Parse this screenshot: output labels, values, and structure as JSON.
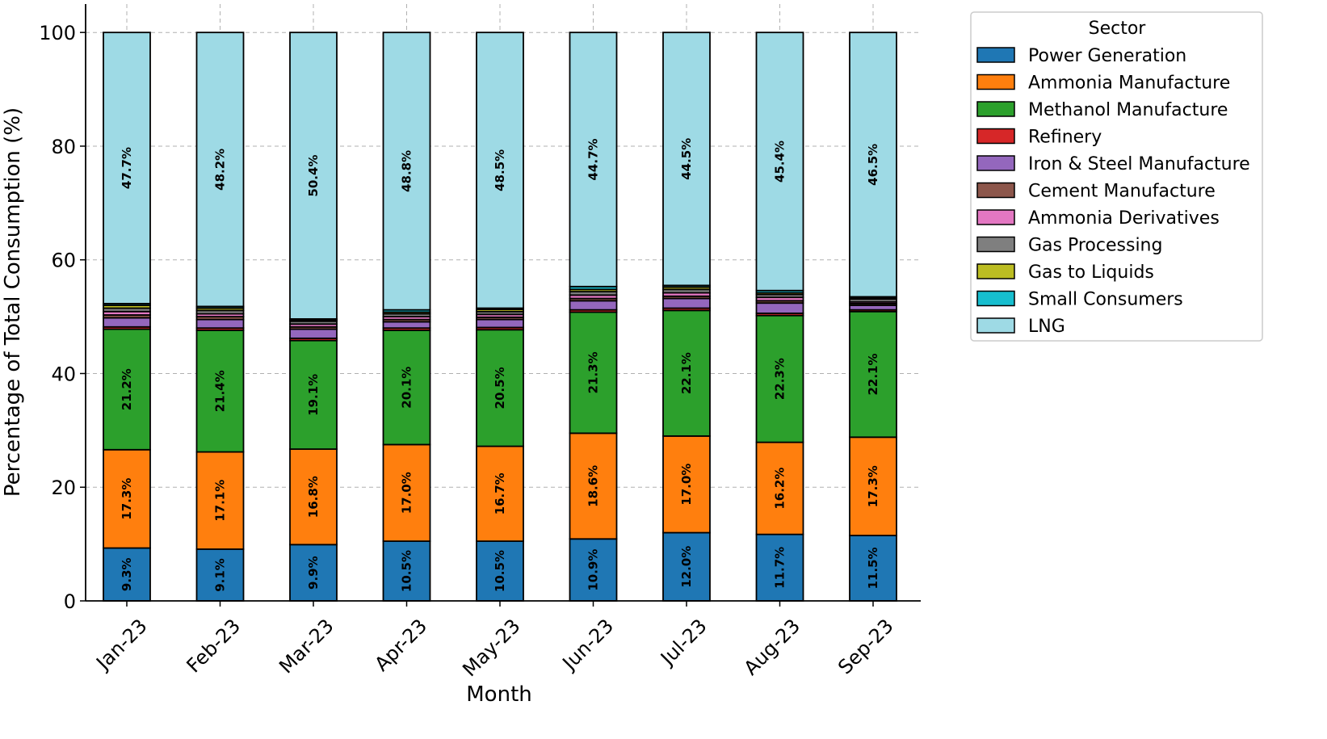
{
  "chart_data": {
    "type": "stacked_bar",
    "x_label": "Month",
    "y_label": "Percentage of Total Consumption (%)",
    "categories": [
      "Jan-23",
      "Feb-23",
      "Mar-23",
      "Apr-23",
      "May-23",
      "Jun-23",
      "Jul-23",
      "Aug-23",
      "Sep-23"
    ],
    "series": [
      {
        "name": "Power Generation",
        "color": "#1f77b4",
        "values": [
          9.3,
          9.1,
          9.9,
          10.5,
          10.5,
          10.9,
          12.0,
          11.7,
          11.5
        ],
        "value_labels": [
          "9.3%",
          "9.1%",
          "9.9%",
          "10.5%",
          "10.5%",
          "10.9%",
          "12.0%",
          "11.7%",
          "11.5%"
        ]
      },
      {
        "name": "Ammonia Manufacture",
        "color": "#ff7f0e",
        "values": [
          17.3,
          17.1,
          16.8,
          17.0,
          16.7,
          18.6,
          17.0,
          16.2,
          17.3
        ],
        "value_labels": [
          "17.3%",
          "17.1%",
          "16.8%",
          "17.0%",
          "16.7%",
          "18.6%",
          "17.0%",
          "16.2%",
          "17.3%"
        ]
      },
      {
        "name": "Methanol Manufacture",
        "color": "#2ca02c",
        "values": [
          21.2,
          21.4,
          19.1,
          20.1,
          20.5,
          21.3,
          22.1,
          22.3,
          22.1
        ],
        "value_labels": [
          "21.2%",
          "21.4%",
          "19.1%",
          "20.1%",
          "20.5%",
          "21.3%",
          "22.1%",
          "22.3%",
          "22.1%"
        ]
      },
      {
        "name": "Refinery",
        "color": "#d62728",
        "values": [
          0.4,
          0.4,
          0.4,
          0.4,
          0.4,
          0.4,
          0.4,
          0.4,
          0.3
        ]
      },
      {
        "name": "Iron & Steel Manufacture",
        "color": "#9467bd",
        "values": [
          1.6,
          1.5,
          1.6,
          1.1,
          1.4,
          1.6,
          1.7,
          1.8,
          0.8
        ]
      },
      {
        "name": "Cement Manufacture",
        "color": "#8c564b",
        "values": [
          0.5,
          0.5,
          0.4,
          0.4,
          0.4,
          0.4,
          0.4,
          0.4,
          0.3
        ]
      },
      {
        "name": "Ammonia Derivatives",
        "color": "#e377c2",
        "values": [
          0.6,
          0.5,
          0.5,
          0.5,
          0.5,
          0.6,
          0.6,
          0.6,
          0.3
        ]
      },
      {
        "name": "Gas Processing",
        "color": "#7f7f7f",
        "values": [
          0.6,
          0.6,
          0.5,
          0.5,
          0.5,
          0.6,
          0.6,
          0.5,
          0.5
        ]
      },
      {
        "name": "Gas to Liquids",
        "color": "#bcbd22",
        "values": [
          0.5,
          0.4,
          0.2,
          0.3,
          0.4,
          0.4,
          0.4,
          0.3,
          0.2
        ]
      },
      {
        "name": "Small Consumers",
        "color": "#17becf",
        "values": [
          0.3,
          0.3,
          0.2,
          0.4,
          0.2,
          0.5,
          0.3,
          0.4,
          0.2
        ]
      },
      {
        "name": "LNG",
        "color": "#9edae5",
        "values": [
          47.7,
          48.2,
          50.4,
          48.8,
          48.5,
          44.7,
          44.5,
          45.4,
          46.5
        ],
        "value_labels": [
          "47.7%",
          "48.2%",
          "50.4%",
          "48.8%",
          "48.5%",
          "44.7%",
          "44.5%",
          "45.4%",
          "46.5%"
        ]
      }
    ],
    "ylim": [
      0,
      105
    ],
    "yticks": [
      0,
      20,
      40,
      60,
      80,
      100
    ],
    "grid": true,
    "legend_title": "Sector",
    "legend_position": "outside right"
  }
}
